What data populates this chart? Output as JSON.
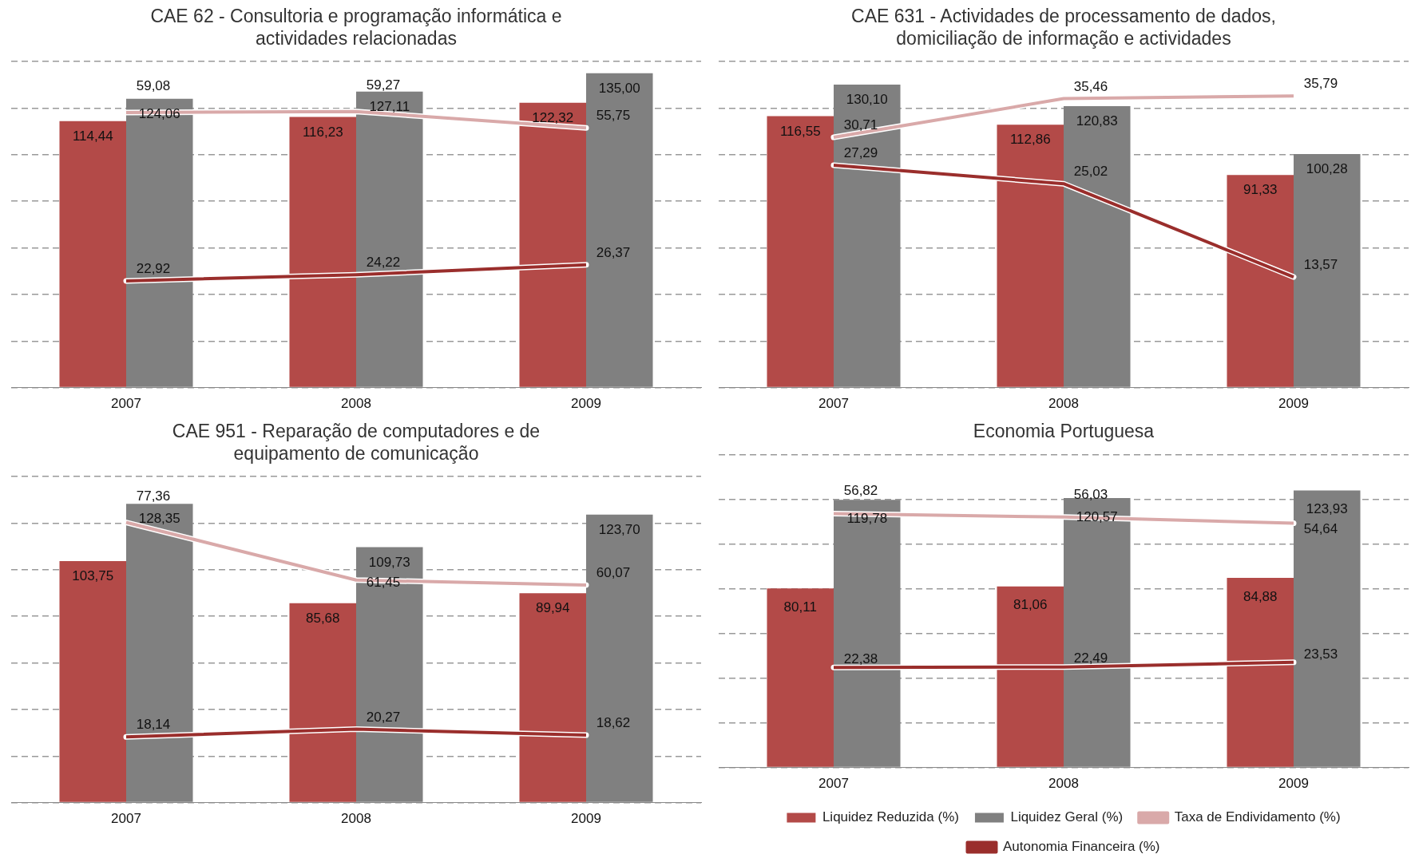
{
  "chart_data": [
    {
      "type": "bar",
      "title": "CAE 62 - Consultoria e programação informática e actividades relacionadas",
      "categories": [
        "2007",
        "2008",
        "2009"
      ],
      "grid": "y",
      "tick_labels": "x",
      "marker": "none",
      "legend": false,
      "series": [
        {
          "color": "#b34a48",
          "values": [
            114.44,
            116.23,
            122.32
          ],
          "value_labels": [
            "114,44",
            "116,23",
            "122,32"
          ]
        },
        {
          "color": "#808080",
          "values": [
            124.06,
            127.11,
            135.0
          ],
          "value_labels": [
            "124,06",
            "127,11",
            "135,00"
          ]
        },
        {
          "type": "line",
          "axis": "y2",
          "color": "#d9a9a9",
          "values": [
            59.08,
            59.27,
            55.75
          ],
          "value_labels": [
            "59,08",
            "59,27",
            "55,75"
          ]
        },
        {
          "type": "line",
          "axis": "y2",
          "color": "#9a2e2c",
          "values": [
            22.92,
            24.22,
            26.37
          ],
          "value_labels": [
            "22,92",
            "24,22",
            "26,37"
          ]
        }
      ]
    },
    {
      "type": "bar",
      "title": "CAE 631 - Actividades de processamento de dados, domiciliação de informação e actividades",
      "categories": [
        "2007",
        "2008",
        "2009"
      ],
      "grid": "y",
      "tick_labels": "x",
      "marker": "none",
      "legend": false,
      "series": [
        {
          "color": "#b34a48",
          "values": [
            116.55,
            112.86,
            91.33
          ],
          "value_labels": [
            "116,55",
            "112,86",
            "91,33"
          ]
        },
        {
          "color": "#808080",
          "values": [
            130.1,
            120.83,
            100.28
          ],
          "value_labels": [
            "130,10",
            "120,83",
            "100,28"
          ]
        },
        {
          "type": "line",
          "axis": "y2",
          "color": "#d9a9a9",
          "values": [
            30.71,
            35.46,
            35.79
          ],
          "value_labels": [
            "30,71",
            "35,46",
            "35,79"
          ]
        },
        {
          "type": "line",
          "axis": "y2",
          "color": "#9a2e2c",
          "values": [
            27.29,
            25.02,
            13.57
          ],
          "value_labels": [
            "27,29",
            "25,02",
            "13,57"
          ]
        }
      ]
    },
    {
      "type": "bar",
      "title": "CAE 951 - Reparação de computadores e de equipamento de comunicação",
      "categories": [
        "2007",
        "2008",
        "2009"
      ],
      "grid": "y",
      "tick_labels": "x",
      "marker": "none",
      "legend": false,
      "series": [
        {
          "color": "#b34a48",
          "values": [
            103.75,
            85.68,
            89.94
          ],
          "value_labels": [
            "103,75",
            "85,68",
            "89,94"
          ]
        },
        {
          "color": "#808080",
          "values": [
            128.35,
            109.73,
            123.7
          ],
          "value_labels": [
            "128,35",
            "109,73",
            "123,70"
          ]
        },
        {
          "type": "line",
          "axis": "y2",
          "color": "#d9a9a9",
          "values": [
            77.36,
            61.45,
            60.07
          ],
          "value_labels": [
            "77,36",
            "61,45",
            "60,07"
          ]
        },
        {
          "type": "line",
          "axis": "y2",
          "color": "#9a2e2c",
          "values": [
            18.14,
            20.27,
            18.62
          ],
          "value_labels": [
            "18,14",
            "20,27",
            "18,62"
          ]
        }
      ]
    },
    {
      "type": "bar",
      "title": "Economia Portuguesa",
      "categories": [
        "2007",
        "2008",
        "2009"
      ],
      "grid": "y",
      "tick_labels": "x",
      "marker": "none",
      "legend": "bottom",
      "series": [
        {
          "name": "Liquidez Reduzida (%)",
          "color": "#b34a48",
          "values": [
            80.11,
            81.06,
            84.88
          ],
          "value_labels": [
            "80,11",
            "81,06",
            "84,88"
          ]
        },
        {
          "name": "Liquidez Geral (%)",
          "color": "#808080",
          "values": [
            119.78,
            120.57,
            123.93
          ],
          "value_labels": [
            "119,78",
            "120,57",
            "123,93"
          ]
        },
        {
          "name": "Taxa de Endividamento (%)",
          "type": "line",
          "axis": "y2",
          "color": "#d9a9a9",
          "values": [
            56.82,
            56.03,
            54.64
          ],
          "value_labels": [
            "56,82",
            "56,03",
            "54,64"
          ]
        },
        {
          "name": "Autonomia Financeira (%)",
          "type": "line",
          "axis": "y2",
          "color": "#9a2e2c",
          "values": [
            22.38,
            22.49,
            23.53
          ],
          "value_labels": [
            "22,38",
            "22,49",
            "23,53"
          ]
        }
      ]
    }
  ]
}
